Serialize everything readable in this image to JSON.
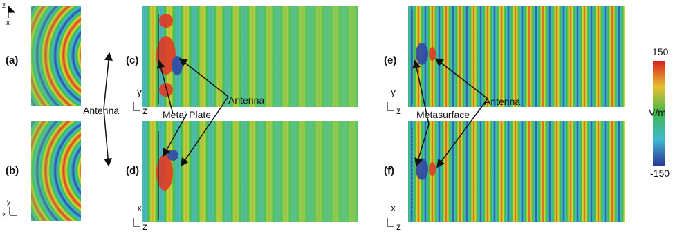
{
  "panels": [
    {
      "label": "(a)",
      "axes": [
        "z",
        "x"
      ]
    },
    {
      "label": "(b)",
      "axes": [
        "y",
        "z"
      ]
    },
    {
      "label": "(c)",
      "axes": [
        "y",
        "z"
      ]
    },
    {
      "label": "(d)",
      "axes": [
        "x",
        "z"
      ]
    },
    {
      "label": "(e)",
      "axes": [
        "y",
        "z"
      ]
    },
    {
      "label": "(f)",
      "axes": [
        "x",
        "z"
      ]
    }
  ],
  "annotations": [
    "Antenna",
    "Metal Plate",
    "Antenna",
    "Antenna",
    "Metasurface"
  ],
  "colorbar": {
    "max": 150,
    "unit": "V/m",
    "min": -150
  }
}
